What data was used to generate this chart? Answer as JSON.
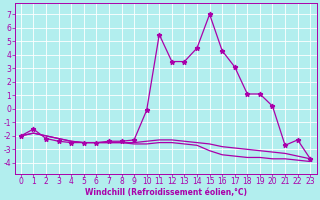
{
  "xlabel": "Windchill (Refroidissement éolien,°C)",
  "bg_color": "#b2eeee",
  "line_color": "#aa00aa",
  "grid_color": "#ffffff",
  "x_ticks": [
    0,
    1,
    2,
    3,
    4,
    5,
    6,
    7,
    8,
    9,
    10,
    11,
    12,
    13,
    14,
    15,
    16,
    17,
    18,
    19,
    20,
    21,
    22,
    23
  ],
  "y_ticks": [
    -4,
    -3,
    -2,
    -1,
    0,
    1,
    2,
    3,
    4,
    5,
    6,
    7
  ],
  "ylim": [
    -4.8,
    7.8
  ],
  "xlim": [
    -0.5,
    23.5
  ],
  "line1_x": [
    0,
    1,
    2,
    3,
    4,
    5,
    6,
    7,
    8,
    9,
    10,
    11,
    12,
    13,
    14,
    15,
    16,
    17,
    18,
    19,
    20,
    21,
    22,
    23
  ],
  "line1_y": [
    -2.0,
    -1.5,
    -2.2,
    -2.4,
    -2.5,
    -2.5,
    -2.5,
    -2.4,
    -2.4,
    -2.3,
    -0.1,
    5.5,
    3.5,
    3.5,
    4.5,
    7.0,
    4.3,
    3.1,
    1.1,
    1.1,
    0.2,
    -2.7,
    -2.3,
    -3.7
  ],
  "line2_x": [
    0,
    1,
    2,
    3,
    4,
    5,
    6,
    7,
    8,
    9,
    10,
    11,
    12,
    13,
    14,
    15,
    16,
    17,
    18,
    19,
    20,
    21,
    22,
    23
  ],
  "line2_y": [
    -2.0,
    -1.8,
    -2.0,
    -2.2,
    -2.4,
    -2.5,
    -2.5,
    -2.5,
    -2.5,
    -2.5,
    -2.4,
    -2.3,
    -2.3,
    -2.4,
    -2.5,
    -2.6,
    -2.8,
    -2.9,
    -3.0,
    -3.1,
    -3.2,
    -3.3,
    -3.5,
    -3.7
  ],
  "line3_x": [
    0,
    1,
    2,
    3,
    4,
    5,
    6,
    7,
    8,
    9,
    10,
    11,
    12,
    13,
    14,
    15,
    16,
    17,
    18,
    19,
    20,
    21,
    22,
    23
  ],
  "line3_y": [
    -2.0,
    -1.8,
    -2.0,
    -2.2,
    -2.4,
    -2.5,
    -2.5,
    -2.5,
    -2.5,
    -2.6,
    -2.6,
    -2.5,
    -2.5,
    -2.6,
    -2.7,
    -3.1,
    -3.4,
    -3.5,
    -3.6,
    -3.6,
    -3.7,
    -3.7,
    -3.8,
    -3.9
  ],
  "tick_fontsize": 5.5,
  "xlabel_fontsize": 5.5,
  "linewidth": 0.9,
  "markersize": 3.5
}
